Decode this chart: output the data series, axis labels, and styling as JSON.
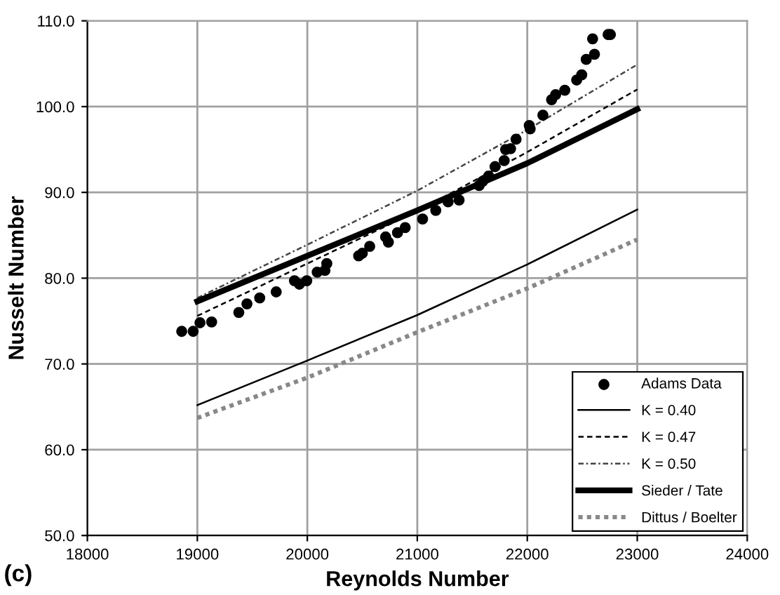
{
  "chart_data": {
    "type": "line",
    "xlabel": "Reynolds Number",
    "ylabel": "Nusselt Number",
    "xlim": [
      18000,
      24000
    ],
    "xticks": [
      18000,
      19000,
      20000,
      21000,
      22000,
      23000,
      24000
    ],
    "ylim": [
      50,
      110
    ],
    "yticks": [
      {
        "value": 50,
        "label": "50.0"
      },
      {
        "value": 60,
        "label": "60.0"
      },
      {
        "value": 70,
        "label": "70.0"
      },
      {
        "value": 80,
        "label": "80.0"
      },
      {
        "value": 90,
        "label": "90.0"
      },
      {
        "value": 100,
        "label": "100.0"
      },
      {
        "value": 110,
        "label": "110.0"
      }
    ],
    "grid": true,
    "legend": "bottom right",
    "annotations": [
      "(c)"
    ],
    "series": [
      {
        "name": "Adams Data",
        "type": "scatter",
        "marker": "circle",
        "color": "#000000",
        "x": [
          18858,
          18962,
          19024,
          19130,
          19377,
          19451,
          19567,
          19717,
          19883,
          19928,
          19995,
          20090,
          20160,
          20177,
          20467,
          20500,
          20567,
          20712,
          20737,
          20820,
          20890,
          21048,
          21168,
          21280,
          21380,
          21562,
          21595,
          21649,
          21707,
          21790,
          21803,
          21848,
          21898,
          22018,
          22026,
          22142,
          22221,
          22258,
          22341,
          22449,
          22495,
          22536,
          22611,
          22594,
          22735,
          22756
        ],
        "values": [
          73.8,
          73.8,
          74.8,
          74.9,
          76.0,
          77.0,
          77.7,
          78.4,
          79.7,
          79.3,
          79.7,
          80.7,
          80.9,
          81.7,
          82.6,
          82.9,
          83.7,
          84.8,
          84.2,
          85.3,
          85.9,
          86.9,
          87.9,
          88.9,
          89.1,
          90.8,
          91.3,
          91.9,
          93.0,
          93.7,
          95.0,
          95.1,
          96.2,
          97.8,
          97.4,
          99.0,
          100.8,
          101.4,
          101.9,
          103.1,
          103.7,
          105.5,
          106.1,
          107.9,
          108.4,
          108.4
        ]
      },
      {
        "name": "K = 0.40",
        "line_style": "solid",
        "marker": "none",
        "color": "#000000",
        "x": [
          19000,
          20000,
          21000,
          22000,
          23000
        ],
        "values": [
          65.2,
          70.4,
          75.7,
          81.6,
          88.0
        ]
      },
      {
        "name": "K = 0.47",
        "line_style": "dashed",
        "marker": "none",
        "color": "#000000",
        "x": [
          19000,
          20000,
          21000,
          22000,
          23000
        ],
        "values": [
          75.6,
          81.7,
          87.8,
          94.7,
          102.0
        ]
      },
      {
        "name": "K = 0.50",
        "line_style": "dashdot",
        "marker": "none",
        "color": "#444444",
        "x": [
          19000,
          20000,
          21000,
          22000,
          23000
        ],
        "values": [
          77.7,
          83.9,
          90.2,
          97.3,
          104.9
        ]
      },
      {
        "name": "Sieder / Tate",
        "line_style": "solid",
        "marker": "none",
        "color": "#000000",
        "x": [
          19000,
          20000,
          21000,
          22000,
          23000
        ],
        "values": [
          77.3,
          82.6,
          87.9,
          93.4,
          99.7
        ]
      },
      {
        "name": "Dittus / Boelter",
        "line_style": "dotted",
        "marker": "none",
        "color": "#888888",
        "x": [
          19000,
          20000,
          21000,
          22000,
          23000
        ],
        "values": [
          63.7,
          68.4,
          73.7,
          78.8,
          84.5
        ]
      }
    ]
  }
}
